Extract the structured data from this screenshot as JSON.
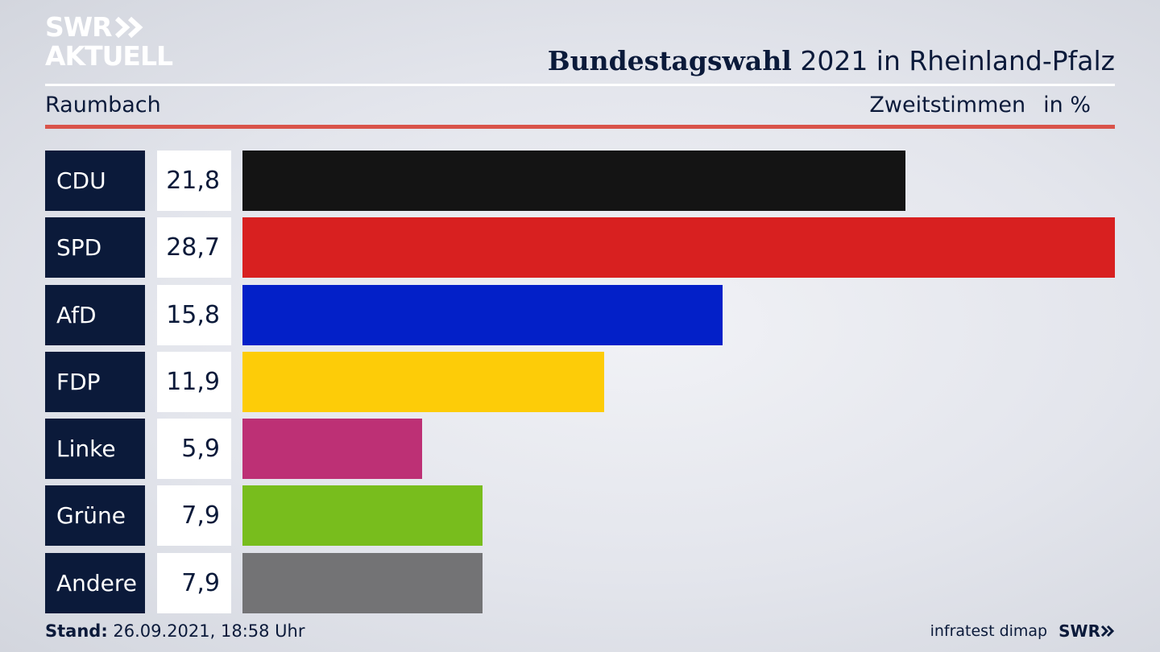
{
  "header": {
    "logo_line1": "SWR",
    "logo_line2": "AKTUELL",
    "title_strong": "Bundestagswahl",
    "title_rest": " 2021 in Rheinland-Pfalz",
    "subtitle": "Raumbach",
    "measure": "Zweitstimmen",
    "unit": "in %"
  },
  "chart_data": {
    "type": "bar",
    "orientation": "horizontal",
    "title": "Bundestagswahl 2021 in Rheinland-Pfalz",
    "subtitle": "Raumbach",
    "xlabel": "Zweitstimmen",
    "ylabel": "",
    "unit": "in %",
    "categories": [
      "CDU",
      "SPD",
      "AfD",
      "FDP",
      "Linke",
      "Grüne",
      "Andere"
    ],
    "values": [
      21.8,
      28.7,
      15.8,
      11.9,
      5.9,
      7.9,
      7.9
    ],
    "value_labels": [
      "21,8",
      "28,7",
      "15,8",
      "11,9",
      "5,9",
      "7,9",
      "7,9"
    ],
    "colors": [
      "#141414",
      "#d82020",
      "#0320c8",
      "#fdcc08",
      "#bd3075",
      "#78bd1d",
      "#737375"
    ],
    "xlim": [
      0,
      28.7
    ],
    "grid": false,
    "legend": "none"
  },
  "footer": {
    "stand_label": "Stand:",
    "stand_value": " 26.09.2021, 18:58 Uhr",
    "source": "infratest dimap",
    "source_logo": "SWR"
  },
  "colors": {
    "navy": "#0b1a3a",
    "accent_red": "#d9534a"
  }
}
